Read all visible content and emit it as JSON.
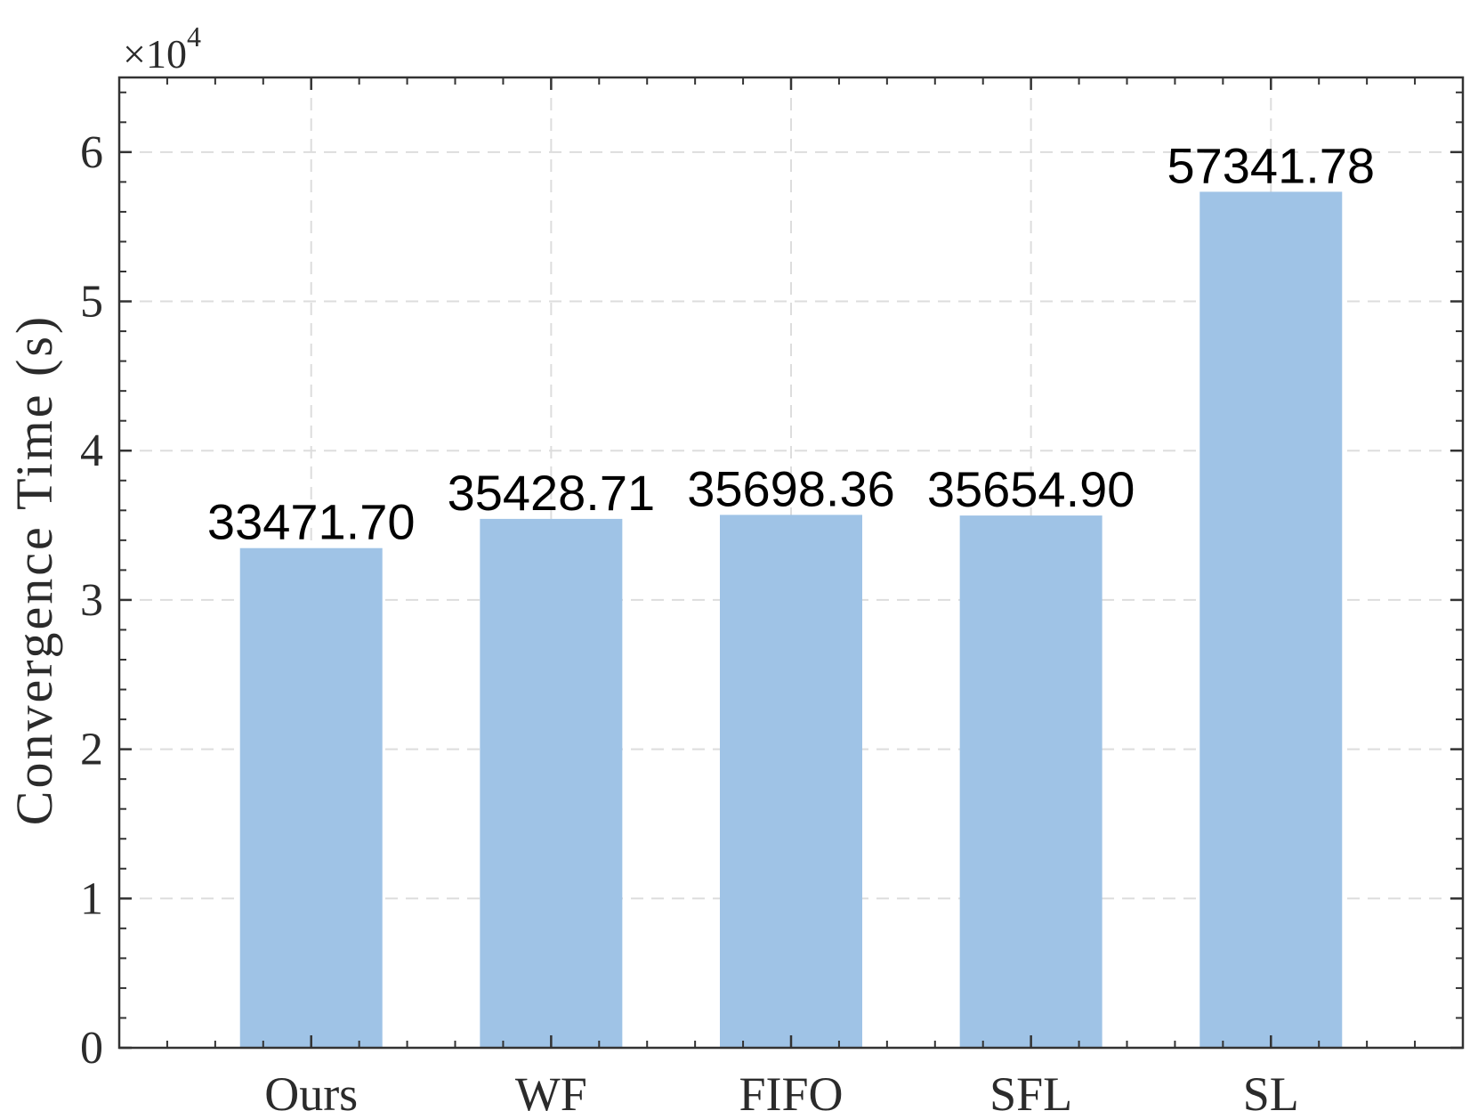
{
  "chart_data": {
    "type": "bar",
    "categories": [
      "Ours",
      "WF",
      "FIFO",
      "SFL",
      "SL"
    ],
    "values": [
      33471.7,
      35428.71,
      35698.36,
      35654.9,
      57341.78
    ],
    "value_labels": [
      "33471.70",
      "35428.71",
      "35698.36",
      "35654.90",
      "57341.78"
    ],
    "title": "",
    "xlabel": "",
    "ylabel": "Convergence Time (s)",
    "y_multiplier_label": "×10",
    "y_multiplier_exponent": "4",
    "y_tick_labels": [
      "0",
      "1",
      "2",
      "3",
      "4",
      "5",
      "6"
    ],
    "ylim": [
      0,
      65000
    ],
    "grid": true,
    "grid_style": "dashed",
    "legend": "none",
    "colors": {
      "bar": "#9fc3e6",
      "axis": "#333333",
      "grid": "#dddddd"
    }
  }
}
